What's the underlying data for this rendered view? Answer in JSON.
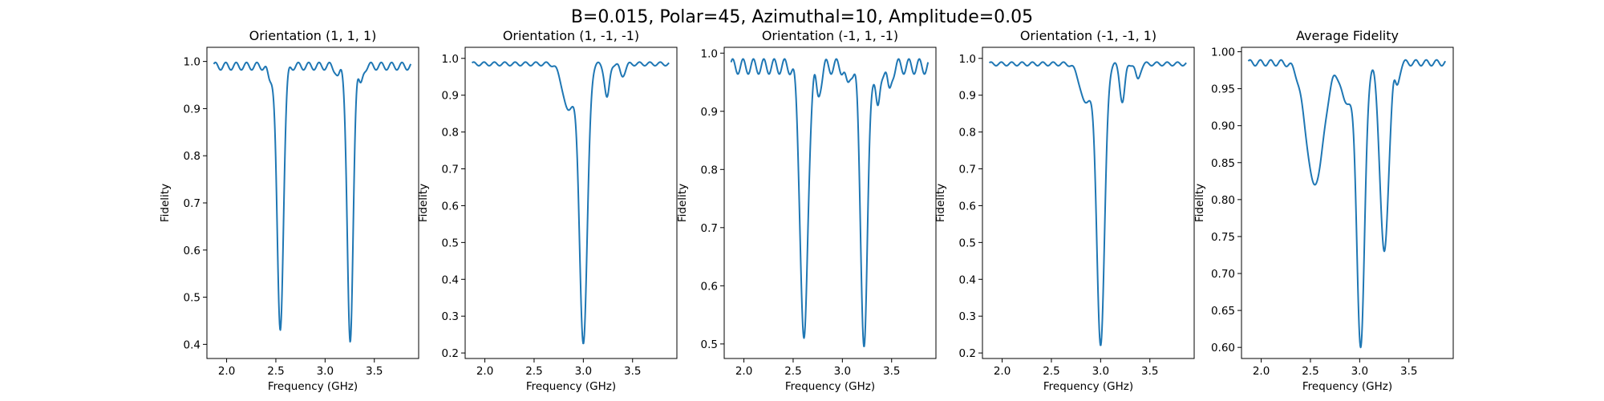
{
  "figure": {
    "suptitle": "B=0.015, Polar=45, Azimuthal=10, Amplitude=0.05"
  },
  "chart_data": [
    {
      "type": "line",
      "title": "Orientation (1, 1, 1)",
      "xlabel": "Frequency (GHz)",
      "ylabel": "Fidelity",
      "xlim": [
        1.8,
        3.95
      ],
      "ylim": [
        0.37,
        1.03
      ],
      "xticks": [
        2.0,
        2.5,
        3.0,
        3.5
      ],
      "yticks": [
        0.4,
        0.5,
        0.6,
        0.7,
        0.8,
        0.9,
        1.0
      ],
      "tick_decimals": 1,
      "color": "#1f77b4",
      "x_range": [
        1.87,
        3.87
      ],
      "baseline": 0.99,
      "ripple": 0.008,
      "dips": [
        {
          "center": 2.445,
          "min": 0.96,
          "width": 0.025
        },
        {
          "center": 2.545,
          "min": 0.43,
          "width": 0.032
        },
        {
          "center": 3.125,
          "min": 0.97,
          "width": 0.025
        },
        {
          "center": 3.255,
          "min": 0.405,
          "width": 0.03
        },
        {
          "center": 3.36,
          "min": 0.955,
          "width": 0.025
        }
      ]
    },
    {
      "type": "line",
      "title": "Orientation (1, -1, -1)",
      "xlabel": "Frequency (GHz)",
      "ylabel": "Fidelity",
      "xlim": [
        1.8,
        3.95
      ],
      "ylim": [
        0.185,
        1.03
      ],
      "xticks": [
        2.0,
        2.5,
        3.0,
        3.5
      ],
      "yticks": [
        0.2,
        0.3,
        0.4,
        0.5,
        0.6,
        0.7,
        0.8,
        0.9,
        1.0
      ],
      "tick_decimals": 1,
      "color": "#1f77b4",
      "x_range": [
        1.87,
        3.87
      ],
      "baseline": 0.985,
      "ripple": 0.005,
      "dips": [
        {
          "center": 2.85,
          "min": 0.86,
          "width": 0.06
        },
        {
          "center": 3.0,
          "min": 0.225,
          "width": 0.04
        },
        {
          "center": 3.24,
          "min": 0.895,
          "width": 0.025
        },
        {
          "center": 3.4,
          "min": 0.95,
          "width": 0.025
        }
      ]
    },
    {
      "type": "line",
      "title": "Orientation (-1, 1, -1)",
      "xlabel": "Frequency (GHz)",
      "ylabel": "Fidelity",
      "xlim": [
        1.8,
        3.95
      ],
      "ylim": [
        0.475,
        1.01
      ],
      "xticks": [
        2.0,
        2.5,
        3.0,
        3.5
      ],
      "yticks": [
        0.5,
        0.6,
        0.7,
        0.8,
        0.9,
        1.0
      ],
      "tick_decimals": 1,
      "color": "#1f77b4",
      "x_range": [
        1.87,
        3.87
      ],
      "baseline": 0.977,
      "ripple": 0.013,
      "dips": [
        {
          "center": 2.61,
          "min": 0.51,
          "width": 0.04
        },
        {
          "center": 2.76,
          "min": 0.925,
          "width": 0.025
        },
        {
          "center": 3.06,
          "min": 0.95,
          "width": 0.03
        },
        {
          "center": 3.22,
          "min": 0.495,
          "width": 0.035
        },
        {
          "center": 3.36,
          "min": 0.91,
          "width": 0.025
        },
        {
          "center": 3.48,
          "min": 0.94,
          "width": 0.025
        }
      ]
    },
    {
      "type": "line",
      "title": "Orientation (-1, -1, 1)",
      "xlabel": "Frequency (GHz)",
      "ylabel": "Fidelity",
      "xlim": [
        1.8,
        3.95
      ],
      "ylim": [
        0.185,
        1.03
      ],
      "xticks": [
        2.0,
        2.5,
        3.0,
        3.5
      ],
      "yticks": [
        0.2,
        0.3,
        0.4,
        0.5,
        0.6,
        0.7,
        0.8,
        0.9,
        1.0
      ],
      "tick_decimals": 1,
      "color": "#1f77b4",
      "x_range": [
        1.87,
        3.87
      ],
      "baseline": 0.985,
      "ripple": 0.005,
      "dips": [
        {
          "center": 2.85,
          "min": 0.88,
          "width": 0.06
        },
        {
          "center": 3.0,
          "min": 0.22,
          "width": 0.04
        },
        {
          "center": 3.22,
          "min": 0.88,
          "width": 0.025
        },
        {
          "center": 3.38,
          "min": 0.945,
          "width": 0.025
        }
      ]
    },
    {
      "type": "line",
      "title": "Average Fidelity",
      "xlabel": "Frequency (GHz)",
      "ylabel": "Fidelity",
      "xlim": [
        1.8,
        3.95
      ],
      "ylim": [
        0.585,
        1.006
      ],
      "xticks": [
        2.0,
        2.5,
        3.0,
        3.5
      ],
      "yticks": [
        0.6,
        0.65,
        0.7,
        0.75,
        0.8,
        0.85,
        0.9,
        0.95,
        1.0
      ],
      "tick_decimals": 2,
      "color": "#1f77b4",
      "x_range": [
        1.87,
        3.87
      ],
      "baseline": 0.985,
      "ripple": 0.004,
      "dips": [
        {
          "center": 2.545,
          "min": 0.82,
          "width": 0.09
        },
        {
          "center": 2.87,
          "min": 0.93,
          "width": 0.06
        },
        {
          "center": 3.01,
          "min": 0.6,
          "width": 0.04
        },
        {
          "center": 3.25,
          "min": 0.73,
          "width": 0.045
        },
        {
          "center": 3.38,
          "min": 0.955,
          "width": 0.025
        }
      ]
    }
  ]
}
